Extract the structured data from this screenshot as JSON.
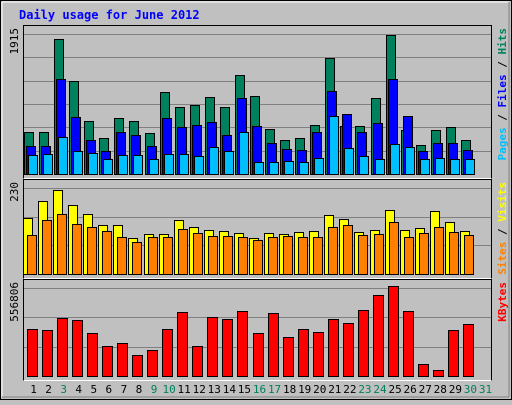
{
  "chart_data": {
    "type": "bar",
    "title": "Daily usage for June 2012",
    "days": [
      "1",
      "2",
      "3",
      "4",
      "5",
      "6",
      "7",
      "8",
      "9",
      "10",
      "11",
      "12",
      "13",
      "14",
      "15",
      "16",
      "17",
      "18",
      "19",
      "20",
      "21",
      "22",
      "23",
      "24",
      "25",
      "26",
      "27",
      "28",
      "29",
      "30",
      "31"
    ],
    "weekend_days": [
      "3",
      "9",
      "10",
      "16",
      "17",
      "23",
      "24",
      "30",
      "31"
    ],
    "panels": [
      {
        "id": "hits",
        "ymax_label": "1915",
        "ymax": 1915,
        "right_label": {
          "parts": [
            "Pages",
            " / ",
            "Files",
            " / ",
            "Hits"
          ]
        },
        "series": [
          {
            "name": "Hits",
            "color": "#00805c",
            "values": [
              580,
              580,
              1850,
              1270,
              720,
              490,
              770,
              730,
              560,
              1120,
              920,
              940,
              1050,
              920,
              1360,
              1070,
              620,
              460,
              490,
              670,
              1590,
              660,
              650,
              1040,
              1900,
              600,
              390,
              600,
              640,
              470,
              0
            ]
          },
          {
            "name": "Files",
            "color": "#0000ff",
            "values": [
              380,
              380,
              1300,
              780,
              460,
              320,
              570,
              530,
              380,
              760,
              640,
              670,
              710,
              540,
              1040,
              660,
              420,
              340,
              330,
              570,
              1130,
              820,
              570,
              700,
              1300,
              800,
              320,
              430,
              430,
              330,
              0
            ]
          },
          {
            "name": "Pages",
            "color": "#00bfff",
            "values": [
              260,
              270,
              510,
              310,
              290,
              200,
              260,
              260,
              200,
              270,
              270,
              240,
              370,
              320,
              570,
              170,
              170,
              180,
              170,
              220,
              790,
              350,
              250,
              210,
              410,
              370,
              210,
              220,
              210,
              200,
              0
            ]
          }
        ]
      },
      {
        "id": "visits",
        "ymax_label": "230",
        "ymax": 230,
        "right_label": {
          "parts": [
            "Sites",
            " / ",
            "Visits"
          ]
        },
        "series": [
          {
            "name": "Visits",
            "color": "#ffff00",
            "values": [
              150,
              195,
              225,
              185,
              160,
              130,
              130,
              97,
              107,
              107,
              145,
              125,
              117,
              115,
              110,
              97,
              110,
              107,
              112,
              115,
              157,
              148,
              112,
              118,
              170,
              117,
              122,
              168,
              140,
              114,
              0
            ]
          },
          {
            "name": "Sites",
            "color": "#ff8000",
            "values": [
              105,
              145,
              160,
              135,
              125,
              115,
              100,
              85,
              98,
              98,
              120,
              110,
              102,
              102,
              98,
              90,
              98,
              102,
              100,
              98,
              125,
              132,
              105,
              108,
              140,
              100,
              110,
              125,
              112,
              105,
              0
            ]
          }
        ]
      },
      {
        "id": "kbytes",
        "ymax_label": "556806",
        "ymax": 556806,
        "right_label": {
          "parts": [
            "KBytes"
          ]
        },
        "series": [
          {
            "name": "KBytes",
            "color": "#ff0000",
            "values": [
              300000,
              294000,
              366000,
              354000,
              275000,
              190000,
              208000,
              136000,
              166000,
              300000,
              403000,
              189000,
              372000,
              360000,
              414000,
              272000,
              400000,
              247000,
              300000,
              280000,
              361000,
              333000,
              419000,
              510000,
              570000,
              409000,
              77000,
              41000,
              290000,
              330000,
              0
            ]
          }
        ]
      }
    ]
  },
  "colors": {
    "background": "#c0c0c0",
    "plot_bg": "#c0c0c0",
    "gridline": "#808080",
    "title": "#0000ff",
    "label_pages": "#00bfff",
    "label_files": "#0000ff",
    "label_hits": "#00805c",
    "label_sites": "#ff8000",
    "label_visits": "#ffff00",
    "label_kbytes": "#ff0000",
    "label_sep": "#000000",
    "weekday": "#000000",
    "weekend": "#00805c"
  }
}
